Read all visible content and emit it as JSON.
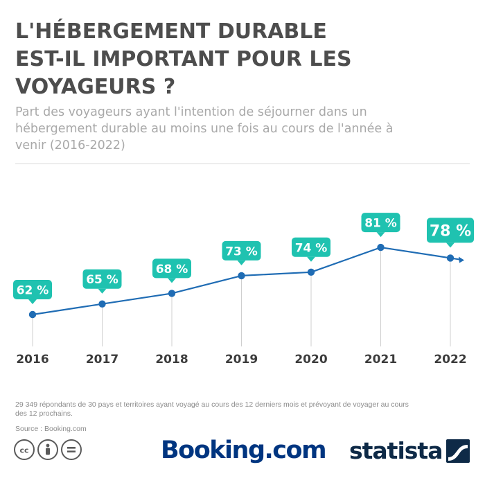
{
  "title_lines": [
    "L'HÉBERGEMENT DURABLE",
    "EST-IL IMPORTANT POUR LES",
    "VOYAGEURS ?"
  ],
  "subtitle_lines": [
    "Part des voyageurs ayant l'intention de séjourner dans un",
    "hébergement durable au moins une fois au cours de l'année à",
    "venir (2016-2022)"
  ],
  "chart_data": {
    "type": "line",
    "categories": [
      "2016",
      "2017",
      "2018",
      "2019",
      "2020",
      "2021",
      "2022"
    ],
    "series": [
      {
        "values": [
          62,
          65,
          68,
          73,
          74,
          81,
          78
        ]
      }
    ],
    "data_labels": [
      "62 %",
      "65 %",
      "68 %",
      "73 %",
      "74 %",
      "81 %",
      "78 %"
    ],
    "highlight_last": true,
    "line_color": "#1f6cb4",
    "label_color": "#1fc2b0",
    "grid": false
  },
  "footnote_lines": [
    "29 349 répondants de 30 pays et territoires ayant voyagé au cours des 12 derniers mois et prévoyant de voyager au cours",
    "des 12 prochains."
  ],
  "source": "Source : Booking.com",
  "license_icons": [
    "cc-icon",
    "attribution-icon",
    "no-derivatives-icon"
  ],
  "logos": {
    "booking": "Booking.com",
    "statista": "statista"
  },
  "colors": {
    "title": "#4d4d4d",
    "subtitle": "#a9a9a9",
    "booking": "#003580",
    "statista": "#0e2a47"
  }
}
